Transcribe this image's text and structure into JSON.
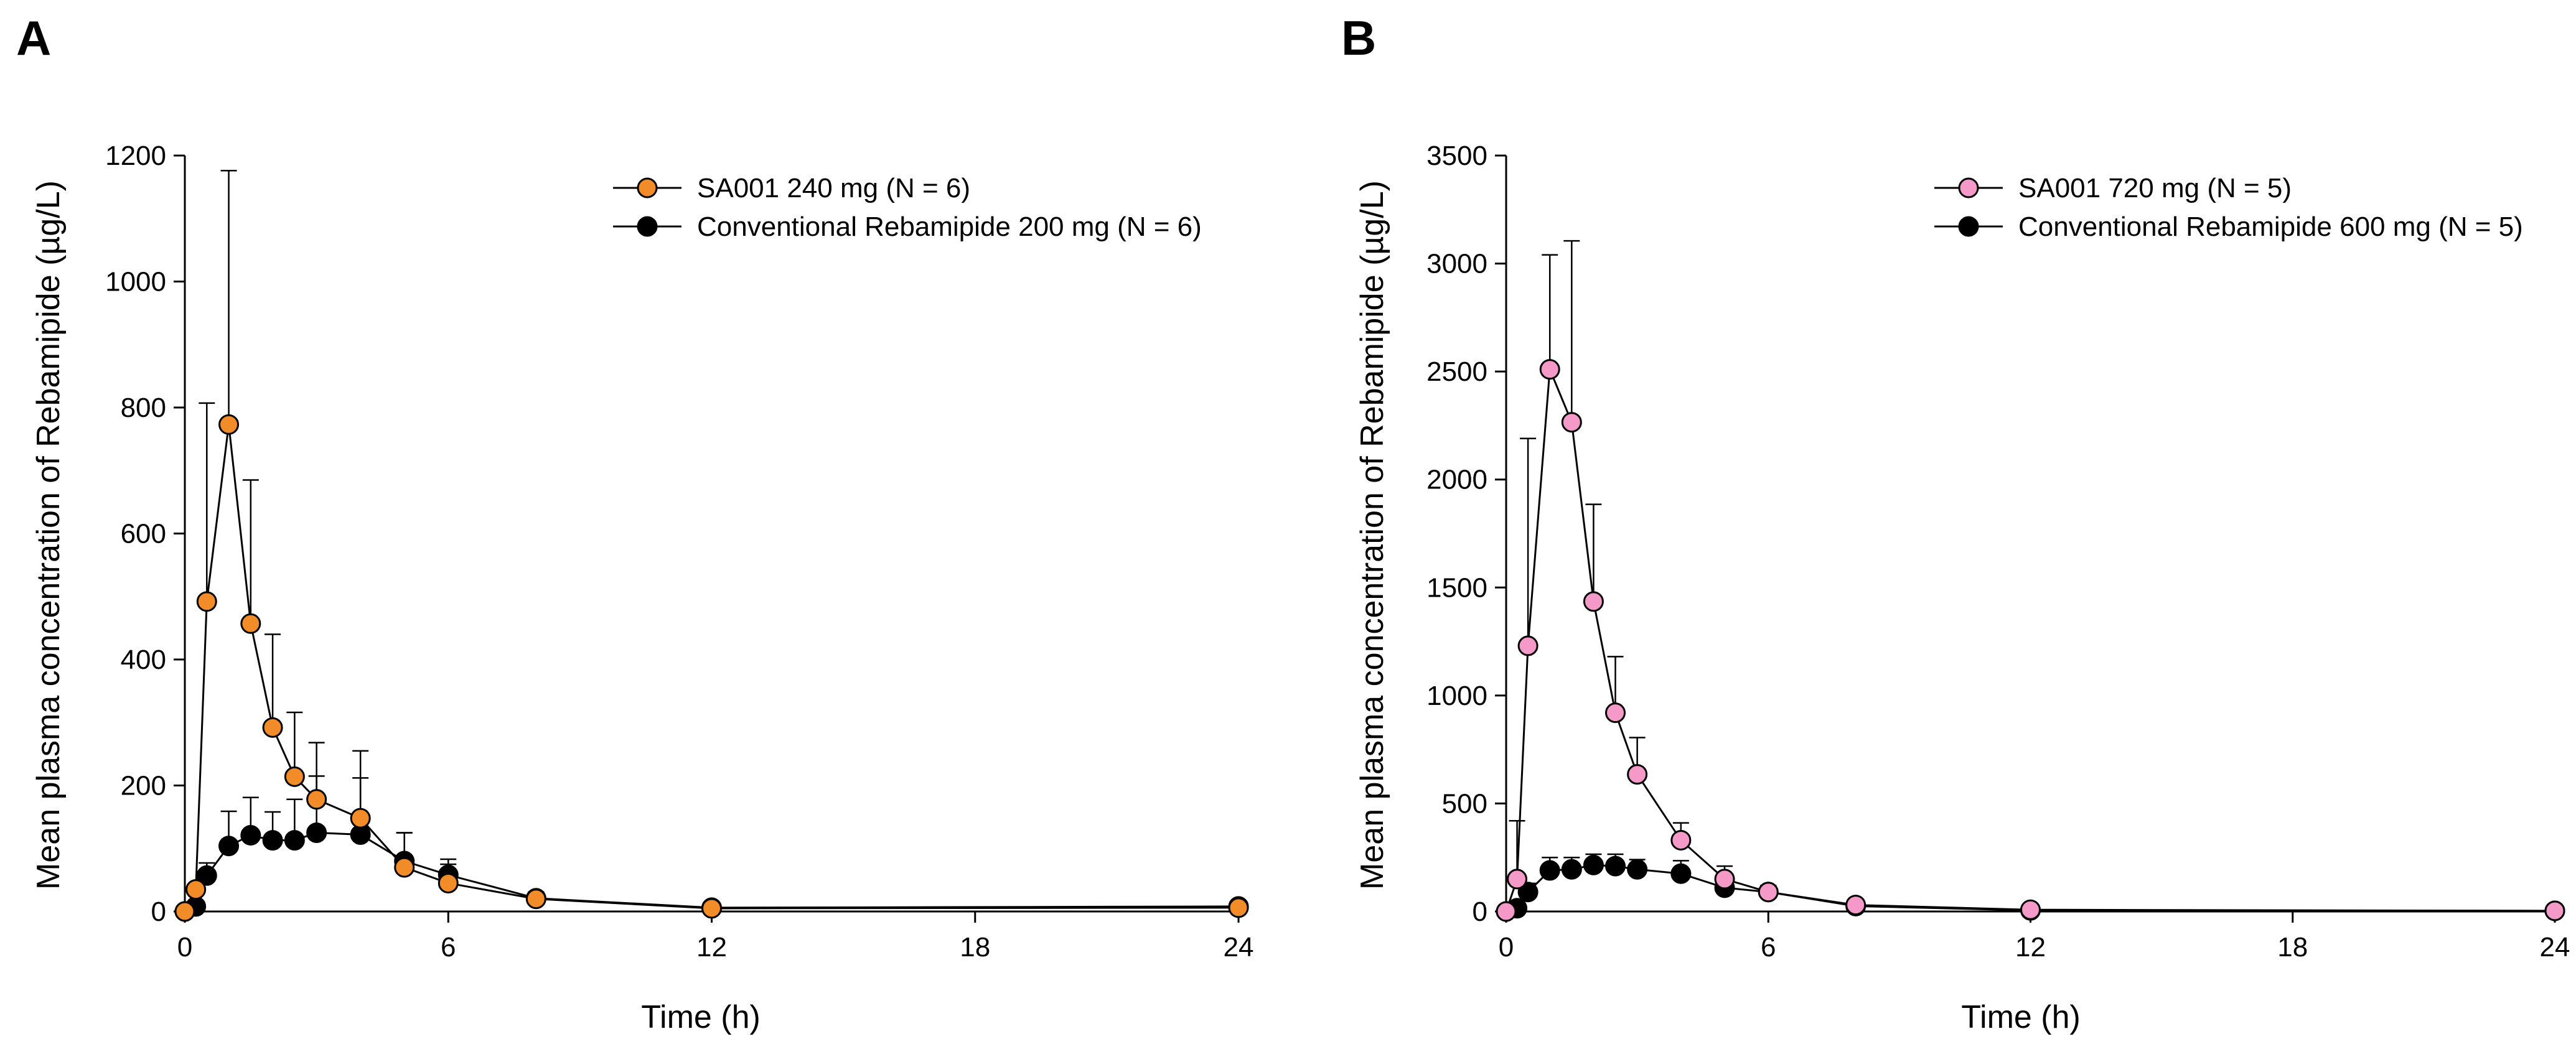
{
  "chart_data": [
    {
      "panel": "A",
      "type": "line",
      "title": "",
      "xlabel": "Time (h)",
      "ylabel": "Mean plasma concentration of Rebamipide (µg/L)",
      "xlim": [
        0,
        24
      ],
      "ylim": [
        0,
        1200
      ],
      "xticks": [
        0,
        6,
        12,
        18,
        24
      ],
      "yticks": [
        0,
        200,
        400,
        600,
        800,
        1000,
        1200
      ],
      "grid": false,
      "legend_position": "top-right",
      "series": [
        {
          "name": "SA001 240 mg (N = 6)",
          "color": "#F28C28",
          "x": [
            0,
            0.25,
            0.5,
            1,
            1.5,
            2,
            2.5,
            3,
            4,
            5,
            6,
            8,
            12,
            24
          ],
          "y": [
            0,
            35,
            492,
            773,
            457,
            292,
            214,
            178,
            148,
            70,
            45,
            20,
            5,
            6
          ],
          "err": [
            0,
            0,
            315,
            403,
            228,
            148,
            102,
            90,
            107,
            55,
            30,
            10,
            2,
            2
          ]
        },
        {
          "name": "Conventional Rebamipide 200 mg (N = 6)",
          "color": "#000000",
          "x": [
            0,
            0.25,
            0.5,
            1,
            1.5,
            2,
            2.5,
            3,
            4,
            5,
            6,
            8,
            12,
            24
          ],
          "y": [
            0,
            8,
            57,
            104,
            121,
            113,
            113,
            125,
            122,
            80,
            58,
            21,
            6,
            8
          ],
          "err": [
            0,
            5,
            20,
            55,
            60,
            45,
            65,
            90,
            90,
            45,
            25,
            10,
            3,
            3
          ]
        }
      ]
    },
    {
      "panel": "B",
      "type": "line",
      "title": "",
      "xlabel": "Time (h)",
      "ylabel": "Mean plasma concentration of Rebamipide (µg/L)",
      "xlim": [
        0,
        24
      ],
      "ylim": [
        0,
        3500
      ],
      "xticks": [
        0,
        6,
        12,
        18,
        24
      ],
      "yticks": [
        0,
        500,
        1000,
        1500,
        2000,
        2500,
        3000,
        3500
      ],
      "grid": false,
      "legend_position": "top-right",
      "series": [
        {
          "name": "SA001 720 mg (N = 5)",
          "color": "#F59AC8",
          "x": [
            0,
            0.25,
            0.5,
            1,
            1.5,
            2,
            2.5,
            3,
            4,
            5,
            6,
            8,
            12,
            24
          ],
          "y": [
            0,
            150,
            1230,
            2510,
            2265,
            1435,
            920,
            635,
            330,
            150,
            90,
            30,
            8,
            3
          ],
          "err": [
            0,
            270,
            960,
            530,
            840,
            450,
            260,
            170,
            80,
            60,
            30,
            10,
            3,
            1
          ]
        },
        {
          "name": "Conventional Rebamipide 600 mg (N = 5)",
          "color": "#000000",
          "x": [
            0,
            0.25,
            0.5,
            1,
            1.5,
            2,
            2.5,
            3,
            4,
            5,
            6,
            8,
            12,
            24
          ],
          "y": [
            0,
            15,
            90,
            190,
            195,
            215,
            210,
            195,
            175,
            110,
            90,
            25,
            5,
            3
          ],
          "err": [
            0,
            10,
            40,
            60,
            55,
            50,
            55,
            45,
            60,
            40,
            30,
            10,
            3,
            1
          ]
        }
      ]
    }
  ]
}
